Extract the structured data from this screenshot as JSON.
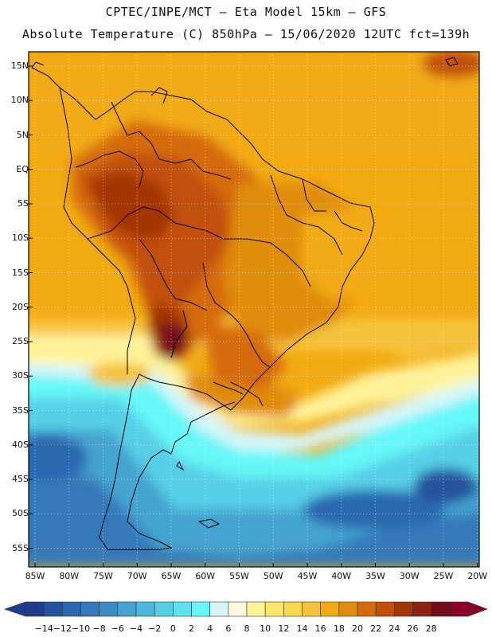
{
  "header": {
    "line1": "CPTEC/INPE/MCT –  Eta Model 15km – GFS",
    "line2": "Absolute Temperature (C) 850hPa – 15/06/2020 12UTC fct=139h"
  },
  "map": {
    "lat_labels": [
      "15N",
      "10N",
      "5N",
      "EQ",
      "5S",
      "10S",
      "15S",
      "20S",
      "25S",
      "30S",
      "35S",
      "40S",
      "45S",
      "50S",
      "55S"
    ],
    "lon_labels": [
      "85W",
      "80W",
      "75W",
      "70W",
      "65W",
      "60W",
      "55W",
      "50W",
      "45W",
      "40W",
      "35W",
      "30W",
      "25W",
      "20W"
    ],
    "lat_values": [
      15,
      10,
      5,
      0,
      -5,
      -10,
      -15,
      -20,
      -25,
      -30,
      -35,
      -40,
      -45,
      -50,
      -55
    ],
    "lon_values": [
      -85,
      -80,
      -75,
      -70,
      -65,
      -60,
      -55,
      -50,
      -45,
      -40,
      -35,
      -30,
      -25,
      -20
    ]
  },
  "colorbar": {
    "labels": [
      "-14",
      "-12",
      "-10",
      "-8",
      "-6",
      "-4",
      "-2",
      "0",
      "2",
      "4",
      "6",
      "8",
      "10",
      "12",
      "14",
      "16",
      "18",
      "20",
      "22",
      "24",
      "26",
      "28"
    ],
    "colors": [
      "#1f3d8c",
      "#25529e",
      "#2c68b0",
      "#3479b9",
      "#3d8bc3",
      "#44a3cf",
      "#4bb9dc",
      "#56cfe6",
      "#5ee2ef",
      "#66f7f8",
      "#d6f6fa",
      "#fff8e0",
      "#fff39a",
      "#ffe66b",
      "#f9d851",
      "#f5c23a",
      "#f2aa12",
      "#e08c0f",
      "#d56a0a",
      "#c14f08",
      "#a33606",
      "#8c2410",
      "#720e1a",
      "#8a0028"
    ],
    "under_color": "#1f3d8c",
    "over_color": "#8a0028"
  }
}
